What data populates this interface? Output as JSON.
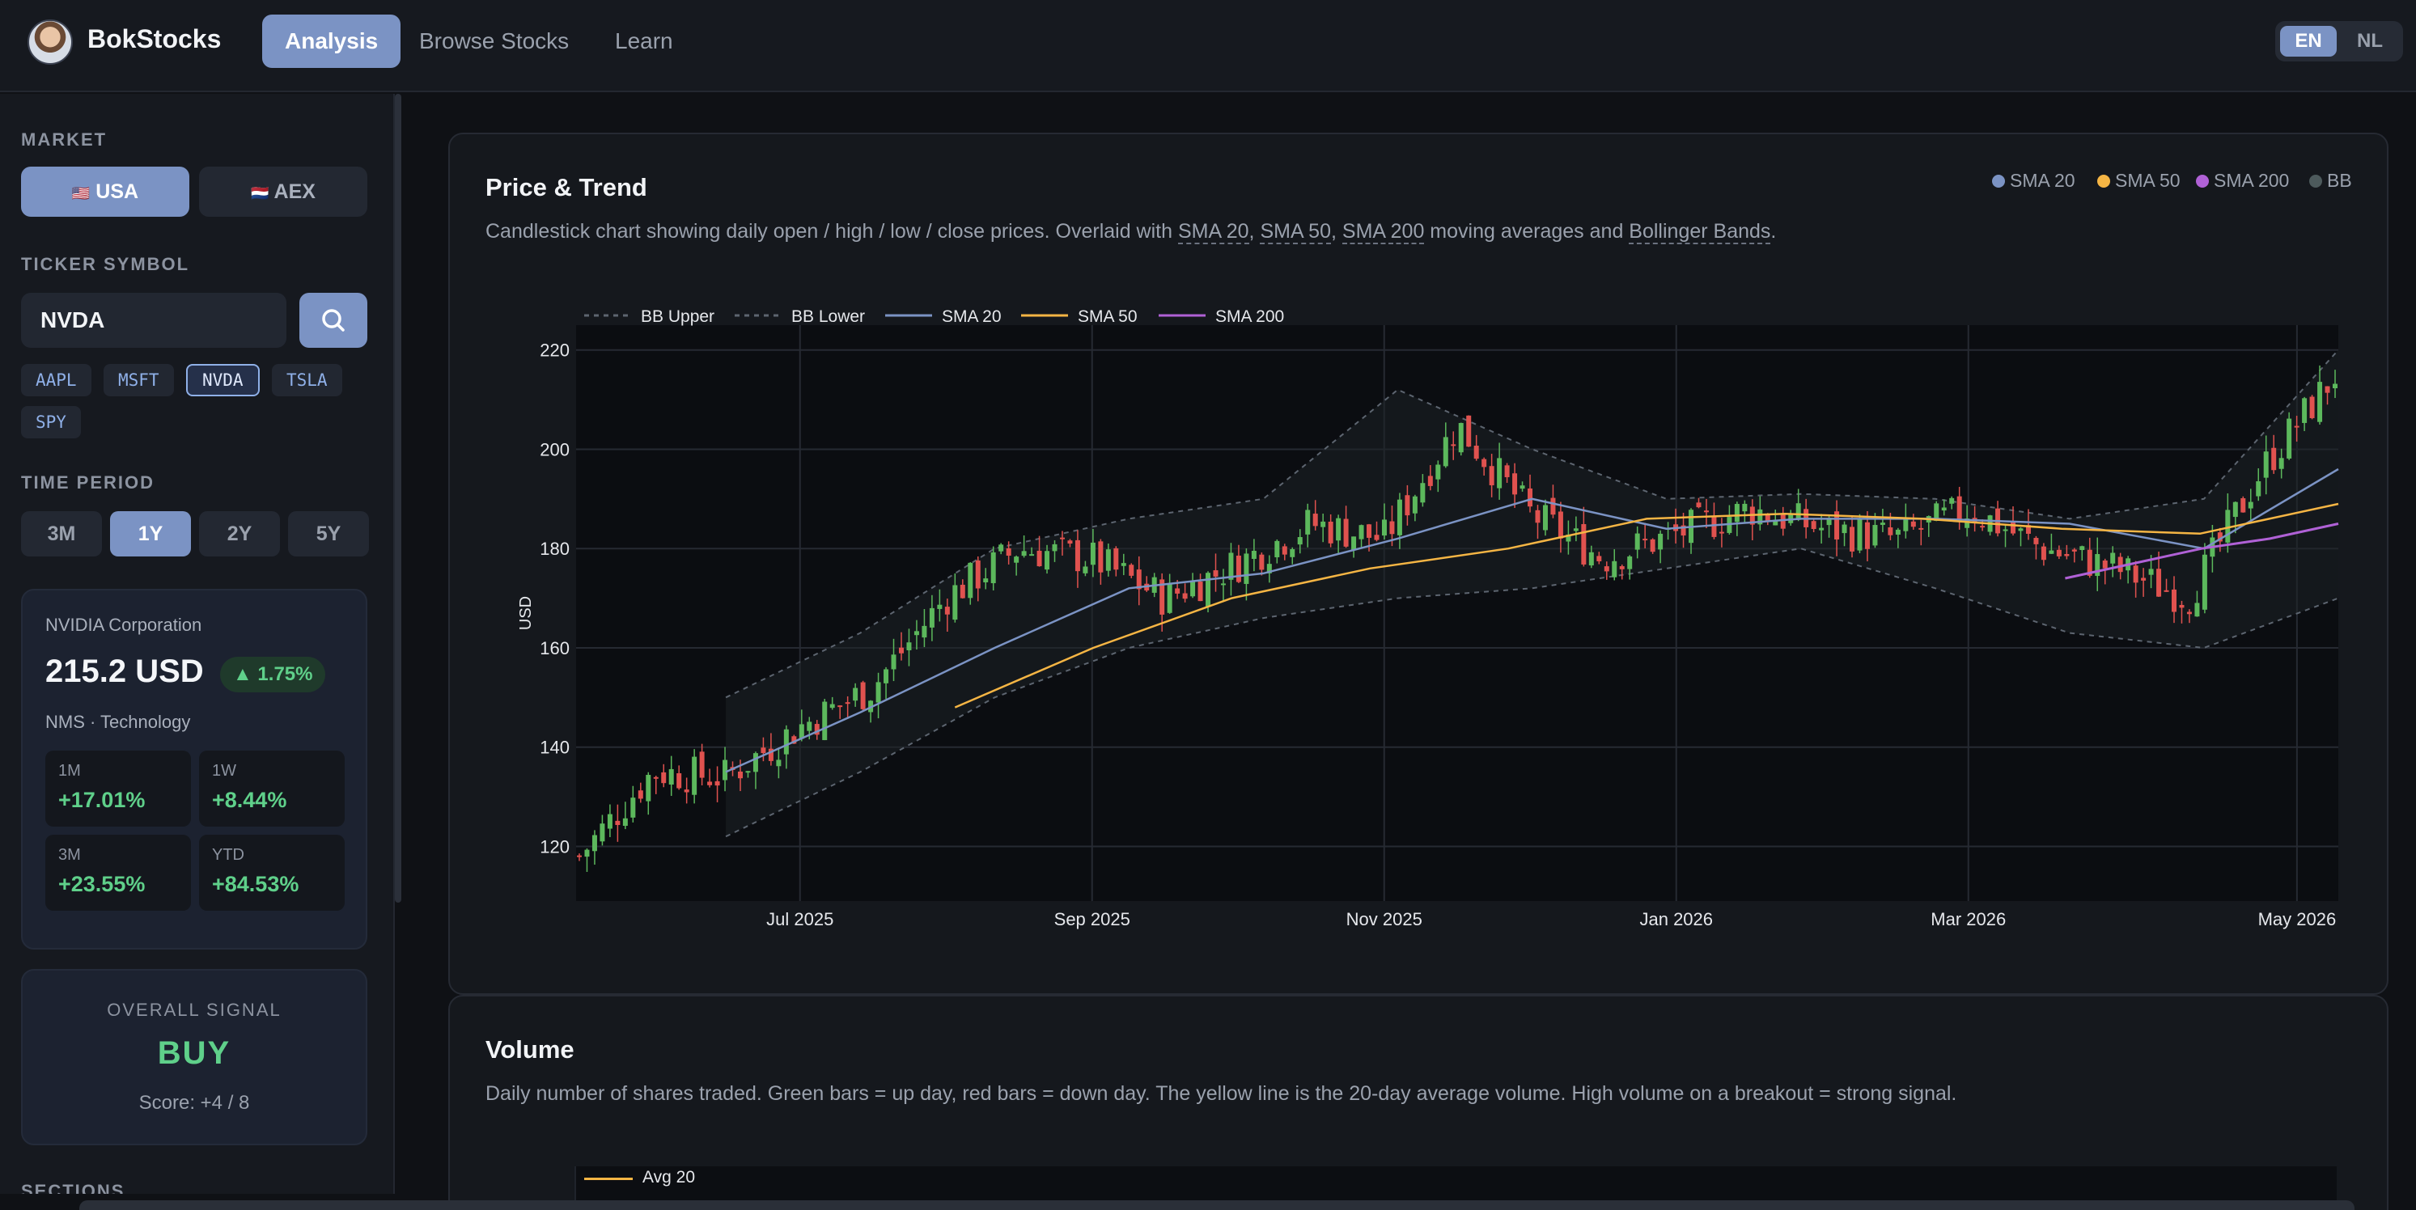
{
  "app": {
    "name": "BokStocks"
  },
  "nav": {
    "tabs": [
      {
        "label": "Analysis"
      },
      {
        "label": "Browse Stocks"
      },
      {
        "label": "Learn"
      }
    ],
    "active": "Analysis"
  },
  "language": {
    "options": [
      "EN",
      "NL"
    ],
    "active": "EN"
  },
  "sidebar": {
    "market_label": "MARKET",
    "markets": [
      {
        "flag": "🇺🇸",
        "label": "USA"
      },
      {
        "flag": "🇳🇱",
        "label": "AEX"
      }
    ],
    "active_market": "USA",
    "ticker_label": "TICKER SYMBOL",
    "ticker_value": "NVDA",
    "ticker_chips": [
      "AAPL",
      "MSFT",
      "NVDA",
      "TSLA",
      "SPY"
    ],
    "active_ticker": "NVDA",
    "period_label": "TIME PERIOD",
    "periods": [
      "3M",
      "1Y",
      "2Y",
      "5Y"
    ],
    "active_period": "1Y",
    "sections_label": "SECTIONS"
  },
  "stock": {
    "name": "NVIDIA Corporation",
    "price": "215.2 USD",
    "change": "▲ 1.75%",
    "meta": "NMS · Technology",
    "performance": [
      {
        "label": "1M",
        "value": "+17.01%"
      },
      {
        "label": "1W",
        "value": "+8.44%"
      },
      {
        "label": "3M",
        "value": "+23.55%"
      },
      {
        "label": "YTD",
        "value": "+84.53%"
      }
    ]
  },
  "signal": {
    "title": "OVERALL SIGNAL",
    "value": "BUY",
    "score": "Score: +4 / 8"
  },
  "price_panel": {
    "title": "Price & Trend",
    "desc_parts": [
      "Candlestick chart showing daily open / high / low / close prices. Overlaid with ",
      "SMA 20",
      ", ",
      "SMA 50",
      ", ",
      "SMA 200",
      " moving averages and ",
      "Bollinger Bands",
      "."
    ],
    "header_legend": [
      {
        "label": "SMA 20",
        "color": "#7b93c4"
      },
      {
        "label": "SMA 50",
        "color": "#f5b544"
      },
      {
        "label": "SMA 200",
        "color": "#b061d6"
      },
      {
        "label": "BB",
        "color": "#4d5a5c"
      }
    ]
  },
  "volume_panel": {
    "title": "Volume",
    "desc": "Daily number of shares traded. Green bars = up day, red bars = down day. The yellow line is the 20-day average volume. High volume on a breakout = strong signal.",
    "legend": "Avg 20"
  },
  "chart_data": {
    "type": "candlestick",
    "ylabel": "USD",
    "ylim": [
      109,
      225
    ],
    "y_ticks": [
      120,
      140,
      160,
      180,
      200,
      220
    ],
    "x_ticks": [
      "Jul 2025",
      "Sep 2025",
      "Nov 2025",
      "Jan 2026",
      "Mar 2026",
      "May 2026"
    ],
    "legend": [
      "BB Upper",
      "BB Lower",
      "SMA 20",
      "SMA 50",
      "SMA 200"
    ],
    "colors": {
      "up": "#5cb85c",
      "down": "#e0524f",
      "sma20": "#7b93c4",
      "sma50": "#f5b544",
      "sma200": "#b061d6",
      "bb": "#5d6570"
    },
    "close_series": [
      {
        "month": "May 2025",
        "close": 118
      },
      {
        "month": "May 2025",
        "close": 135
      },
      {
        "month": "Jun 2025",
        "close": 134
      },
      {
        "month": "Jun 2025",
        "close": 144
      },
      {
        "month": "Jul 2025",
        "close": 152
      },
      {
        "month": "Jul 2025",
        "close": 170
      },
      {
        "month": "Aug 2025",
        "close": 180
      },
      {
        "month": "Aug 2025",
        "close": 178
      },
      {
        "month": "Sep 2025",
        "close": 170
      },
      {
        "month": "Sep 2025",
        "close": 177
      },
      {
        "month": "Oct 2025",
        "close": 185
      },
      {
        "month": "Oct 2025",
        "close": 182
      },
      {
        "month": "Nov 2025",
        "close": 205
      },
      {
        "month": "Nov 2025",
        "close": 187
      },
      {
        "month": "Dec 2025",
        "close": 178
      },
      {
        "month": "Dec 2025",
        "close": 183
      },
      {
        "month": "Jan 2026",
        "close": 188
      },
      {
        "month": "Jan 2026",
        "close": 184
      },
      {
        "month": "Feb 2026",
        "close": 182
      },
      {
        "month": "Feb 2026",
        "close": 188
      },
      {
        "month": "Mar 2026",
        "close": 180
      },
      {
        "month": "Mar 2026",
        "close": 176
      },
      {
        "month": "Apr 2026",
        "close": 170
      },
      {
        "month": "Apr 2026",
        "close": 196
      },
      {
        "month": "May 2026",
        "close": 215
      }
    ],
    "sma20": [
      135,
      147,
      160,
      172,
      175,
      182,
      190,
      184,
      186,
      186,
      185,
      180,
      196
    ],
    "sma50": [
      148,
      160,
      170,
      176,
      180,
      186,
      187,
      186,
      184,
      183,
      189
    ],
    "sma200": [
      174,
      177,
      180,
      182,
      185
    ],
    "bb_upper": [
      150,
      163,
      180,
      186,
      190,
      212,
      200,
      190,
      191,
      190,
      186,
      190,
      220
    ],
    "bb_lower": [
      122,
      135,
      150,
      160,
      166,
      170,
      172,
      176,
      180,
      172,
      163,
      160,
      170
    ]
  }
}
